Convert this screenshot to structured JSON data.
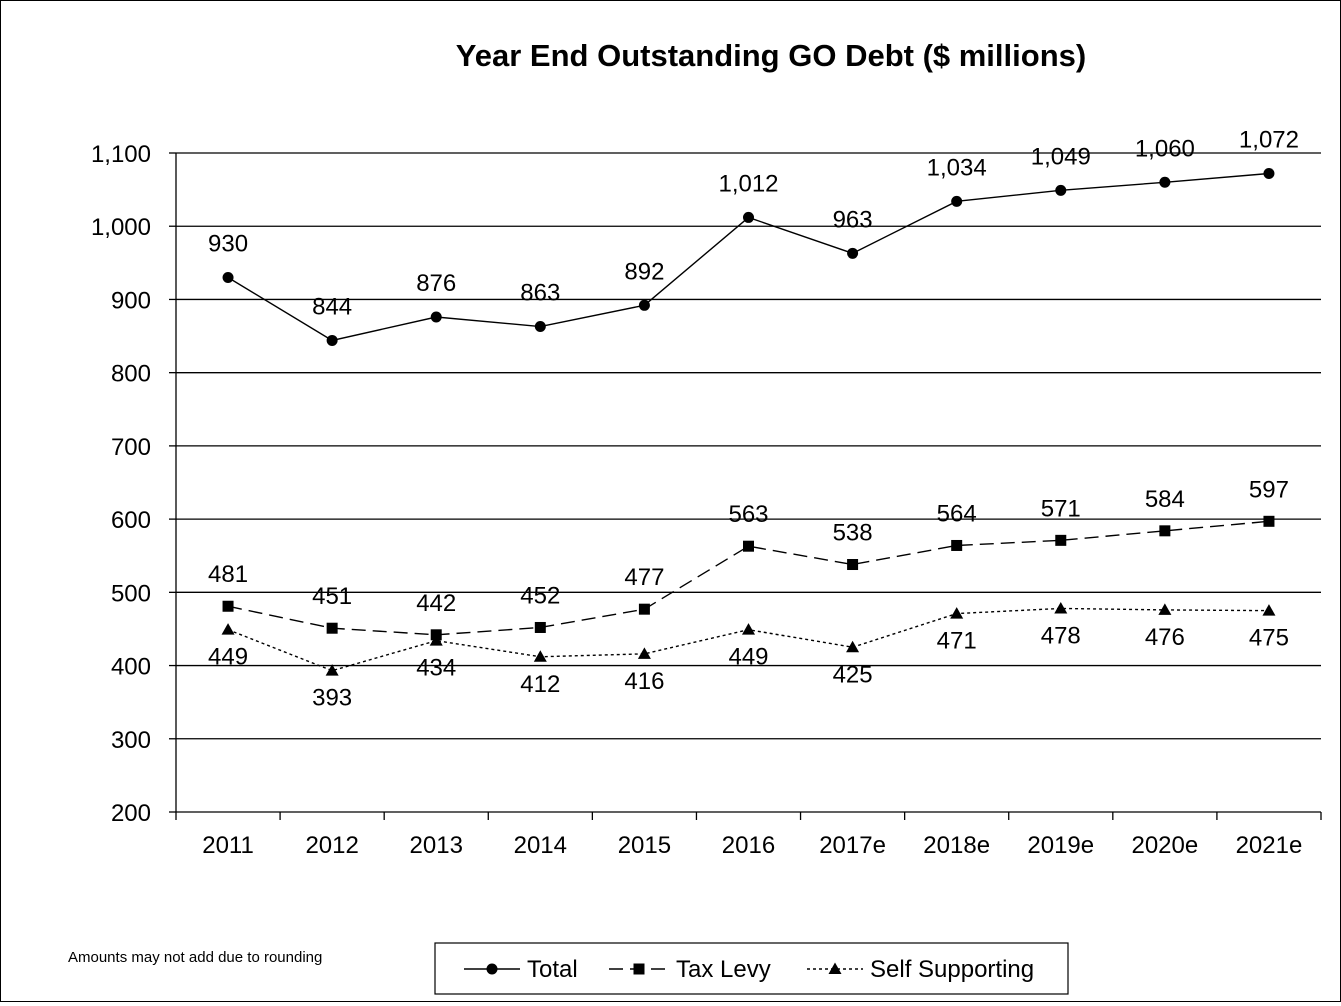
{
  "chart_data": {
    "type": "line",
    "title": "Year End Outstanding GO Debt ($ millions)",
    "xlabel": "",
    "ylabel": "",
    "categories": [
      "2011",
      "2012",
      "2013",
      "2014",
      "2015",
      "2016",
      "2017e",
      "2018e",
      "2019e",
      "2020e",
      "2021e"
    ],
    "ylim": [
      200,
      1100
    ],
    "yticks": [
      200,
      300,
      400,
      500,
      600,
      700,
      800,
      900,
      1000,
      1100
    ],
    "ytick_labels": [
      "200",
      "300",
      "400",
      "500",
      "600",
      "700",
      "800",
      "900",
      "1,000",
      "1,100"
    ],
    "grid": true,
    "legend_position": "bottom",
    "series": [
      {
        "name": "Total",
        "marker": "circle",
        "line": "solid",
        "values": [
          930,
          844,
          876,
          863,
          892,
          1012,
          963,
          1034,
          1049,
          1060,
          1072
        ],
        "labels": [
          "930",
          "844",
          "876",
          "863",
          "892",
          "1,012",
          "963",
          "1,034",
          "1,049",
          "1,060",
          "1,072"
        ]
      },
      {
        "name": "Tax Levy",
        "marker": "square",
        "line": "dashed",
        "values": [
          481,
          451,
          442,
          452,
          477,
          563,
          538,
          564,
          571,
          584,
          597
        ],
        "labels": [
          "481",
          "451",
          "442",
          "452",
          "477",
          "563",
          "538",
          "564",
          "571",
          "584",
          "597"
        ]
      },
      {
        "name": "Self Supporting",
        "marker": "triangle",
        "line": "dotted",
        "values": [
          449,
          393,
          434,
          412,
          416,
          449,
          425,
          471,
          478,
          476,
          475
        ],
        "labels": [
          "449",
          "393",
          "434",
          "412",
          "416",
          "449",
          "425",
          "471",
          "478",
          "476",
          "475"
        ]
      }
    ],
    "footnote": "Amounts may not add due to rounding"
  }
}
